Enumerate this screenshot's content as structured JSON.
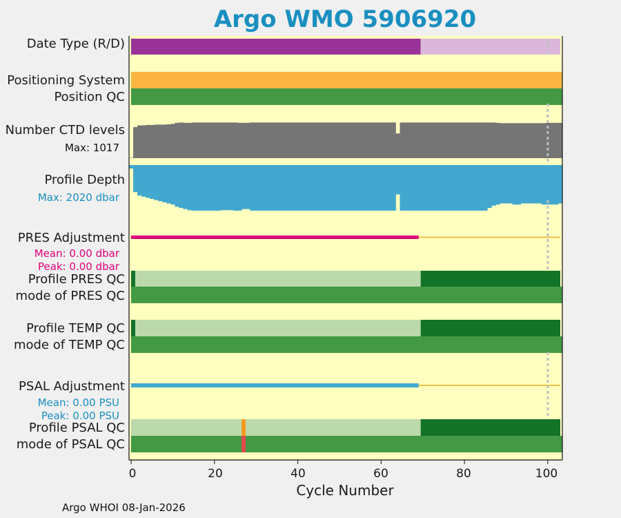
{
  "title": "Argo WMO 5906920",
  "footer": "Argo WHOI 08-Jan-2026",
  "rows": {
    "date_type": "Date Type (R/D)",
    "positioning_system": "Positioning System",
    "position_qc": "Position QC",
    "ctd_levels": "Number CTD levels",
    "ctd_max": "Max: 1017",
    "profile_depth": "Profile Depth",
    "depth_max": "Max: 2020 dbar",
    "pres_adjustment": "PRES Adjustment",
    "pres_mean": "Mean: 0.00 dbar",
    "pres_peak": "Peak: 0.00 dbar",
    "profile_pres_qc": "Profile PRES QC",
    "mode_pres_qc": "mode of PRES QC",
    "profile_temp_qc": "Profile TEMP QC",
    "mode_temp_qc": "mode of TEMP QC",
    "psal_adjustment": "PSAL Adjustment",
    "psal_mean": "Mean: 0.00 PSU",
    "psal_peak": "Peak: 0.00 PSU",
    "profile_psal_qc": "Profile PSAL QC",
    "mode_psal_qc": "mode of PSAL QC"
  },
  "colors": {
    "background": "#ffffc0",
    "realtime": "#993399",
    "delayed": "#dbb8db",
    "positioning": "#fbb540",
    "good": "#439944",
    "qc_good_dark": "#137328",
    "qc_light": "#bcd9ab",
    "ctd": "#757575",
    "depth": "#42a8d0",
    "pres_adj": "#e0007a",
    "psal_adj": "#42a8d0",
    "orange_flag": "#f59a20",
    "red_flag": "#e04a4a",
    "adj_line": "#f0c14a",
    "mean_pres_text": "#e0007a",
    "mean_psal_text": "#1a8fc0"
  },
  "chart_data": {
    "type": "bar",
    "xlabel": "Cycle Number",
    "xlim": [
      -0.5,
      103.5
    ],
    "xticks": [
      "0",
      "20",
      "40",
      "60",
      "80",
      "100"
    ],
    "marker_cycle": 100,
    "realtime_until_cycle": 69.5,
    "psal_flag_cycle": 27,
    "ctd_levels_max": 1017,
    "profile_depth_max": 2020,
    "ctd_levels": [
      10,
      880,
      930,
      930,
      940,
      940,
      950,
      950,
      950,
      960,
      970,
      1000,
      1010,
      1000,
      1000,
      1010,
      1010,
      1010,
      1010,
      1010,
      1010,
      1010,
      1010,
      1010,
      1010,
      1010,
      1000,
      1000,
      1000,
      1010,
      1010,
      1010,
      1010,
      1010,
      1010,
      1010,
      1010,
      1010,
      1010,
      1010,
      1010,
      1010,
      1010,
      1010,
      1010,
      1010,
      1010,
      1010,
      1010,
      1010,
      1010,
      1010,
      1010,
      1010,
      1010,
      1010,
      1010,
      1010,
      1010,
      1010,
      1010,
      1010,
      1010,
      1010,
      700,
      1010,
      1010,
      1010,
      1010,
      1010,
      1010,
      1010,
      1010,
      1010,
      1010,
      1010,
      1010,
      1010,
      1010,
      1010,
      1010,
      1010,
      1010,
      1010,
      1010,
      1010,
      1010,
      1010,
      1000,
      990,
      990,
      990,
      990,
      990,
      990,
      990,
      990,
      990,
      990,
      990,
      1000,
      1000,
      1000,
      1000
    ],
    "profile_depth": [
      0,
      1200,
      1350,
      1400,
      1450,
      1500,
      1550,
      1600,
      1650,
      1700,
      1750,
      1850,
      1900,
      1950,
      2000,
      2020,
      2020,
      2020,
      2020,
      2020,
      2020,
      2020,
      2000,
      2000,
      2000,
      2020,
      2020,
      1950,
      1950,
      2020,
      2020,
      2020,
      2020,
      2020,
      2020,
      2020,
      2020,
      2020,
      2020,
      2020,
      2020,
      2020,
      2020,
      2020,
      2020,
      2020,
      2020,
      2020,
      2020,
      2020,
      2020,
      2020,
      2020,
      2020,
      2020,
      2020,
      2020,
      2020,
      2020,
      2020,
      2020,
      2020,
      2020,
      2020,
      1300,
      2020,
      2020,
      2020,
      2020,
      2020,
      2020,
      2020,
      2020,
      2020,
      2020,
      2020,
      2020,
      2020,
      2020,
      2020,
      2020,
      2020,
      2020,
      2020,
      2020,
      2020,
      1900,
      1800,
      1750,
      1700,
      1700,
      1700,
      1750,
      1750,
      1700,
      1700,
      1700,
      1700,
      1700,
      1750,
      1750,
      1750,
      1750,
      1700
    ],
    "pres_adjustment": 0.0,
    "psal_adjustment": 0.0
  }
}
